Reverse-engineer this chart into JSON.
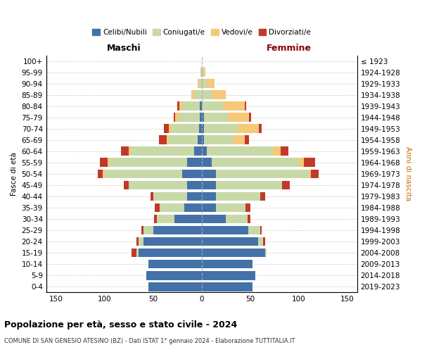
{
  "age_groups": [
    "0-4",
    "5-9",
    "10-14",
    "15-19",
    "20-24",
    "25-29",
    "30-34",
    "35-39",
    "40-44",
    "45-49",
    "50-54",
    "55-59",
    "60-64",
    "65-69",
    "70-74",
    "75-79",
    "80-84",
    "85-89",
    "90-94",
    "95-99",
    "100+"
  ],
  "birth_years": [
    "2019-2023",
    "2014-2018",
    "2009-2013",
    "2004-2008",
    "1999-2003",
    "1994-1998",
    "1989-1993",
    "1984-1988",
    "1979-1983",
    "1974-1978",
    "1969-1973",
    "1964-1968",
    "1959-1963",
    "1954-1958",
    "1949-1953",
    "1944-1948",
    "1939-1943",
    "1934-1938",
    "1929-1933",
    "1924-1928",
    "≤ 1923"
  ],
  "colors": {
    "celibi": "#4472a8",
    "coniugati": "#c8d9a8",
    "vedovi": "#f5c87a",
    "divorziati": "#c0392b"
  },
  "male": {
    "celibi": [
      55,
      57,
      55,
      65,
      60,
      50,
      28,
      18,
      15,
      15,
      20,
      15,
      8,
      4,
      3,
      2,
      2,
      0,
      0,
      0,
      0
    ],
    "coniugati": [
      0,
      0,
      0,
      2,
      5,
      10,
      18,
      25,
      35,
      60,
      80,
      80,
      65,
      30,
      28,
      22,
      18,
      8,
      2,
      1,
      0
    ],
    "vedovi": [
      0,
      0,
      0,
      0,
      0,
      0,
      0,
      0,
      0,
      0,
      2,
      2,
      2,
      2,
      3,
      3,
      3,
      3,
      2,
      0,
      0
    ],
    "divorziati": [
      0,
      0,
      0,
      5,
      2,
      2,
      3,
      5,
      3,
      5,
      5,
      8,
      8,
      8,
      5,
      2,
      2,
      0,
      0,
      0,
      0
    ]
  },
  "female": {
    "nubili": [
      52,
      55,
      52,
      65,
      58,
      48,
      25,
      15,
      15,
      15,
      15,
      10,
      5,
      2,
      2,
      2,
      0,
      0,
      0,
      0,
      0
    ],
    "coniugate": [
      0,
      0,
      0,
      2,
      5,
      12,
      22,
      30,
      45,
      68,
      95,
      90,
      68,
      30,
      35,
      25,
      22,
      10,
      5,
      2,
      0
    ],
    "vedove": [
      0,
      0,
      0,
      0,
      0,
      0,
      0,
      0,
      0,
      0,
      2,
      5,
      8,
      12,
      22,
      22,
      22,
      15,
      8,
      2,
      0
    ],
    "divorziate": [
      0,
      0,
      0,
      0,
      2,
      2,
      3,
      5,
      5,
      8,
      8,
      12,
      8,
      5,
      3,
      2,
      2,
      0,
      0,
      0,
      0
    ]
  },
  "title_main": "Popolazione per età, sesso e stato civile - 2024",
  "title_sub": "COMUNE DI SAN GENESIO ATESINO (BZ) - Dati ISTAT 1° gennaio 2024 - Elaborazione TUTTITALIA.IT",
  "xlabel_left": "Maschi",
  "xlabel_right": "Femmine",
  "ylabel": "Fasce di età",
  "ylabel_right": "Anni di nascita",
  "xlim": 160,
  "legend_labels": [
    "Celibi/Nubili",
    "Coniugati/e",
    "Vedovi/e",
    "Divorziati/e"
  ]
}
